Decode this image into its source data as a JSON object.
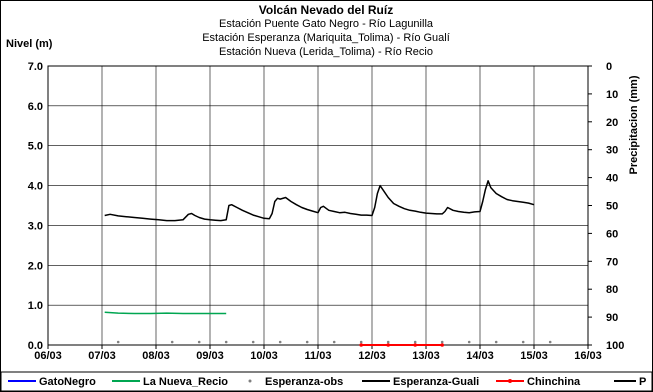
{
  "chart_data": {
    "type": "line",
    "title": "Volcán Nevado del Ruíz",
    "subtitles": [
      "Estación Puente Gato Negro - Río Lagunilla",
      "Estación Esperanza (Mariquita_Tolima) - Río Gualí",
      "Estación Nueva (Lerida_Tolima) - Río Recio"
    ],
    "ylabel": "Nivel (m)",
    "y2label": "Precipitacion (mm)",
    "x_range": [
      0,
      10
    ],
    "ylim": [
      0,
      7
    ],
    "y2lim": [
      100,
      0
    ],
    "x_tick_labels": [
      "06/03",
      "07/03",
      "08/03",
      "09/03",
      "10/03",
      "11/03",
      "12/03",
      "13/03",
      "14/03",
      "15/03",
      "16/03"
    ],
    "y_tick_labels": [
      "0.0",
      "1.0",
      "2.0",
      "3.0",
      "4.0",
      "5.0",
      "6.0",
      "7.0"
    ],
    "y2_tick_labels": [
      "0",
      "10",
      "20",
      "30",
      "40",
      "50",
      "60",
      "70",
      "80",
      "90",
      "100"
    ],
    "grid": true,
    "legend_position": "bottom",
    "colors": {
      "GatoNegro": "#0000ff",
      "La Nueva_Recio": "#00a651",
      "Esperanza-obs": "#7f7f7f",
      "Esperanza-Guali": "#000000",
      "Chinchina": "#ff0000",
      "P": "#000000"
    },
    "series": [
      {
        "name": "GatoNegro",
        "marker": "line",
        "x": [],
        "y": []
      },
      {
        "name": "La Nueva_Recio",
        "marker": "line",
        "x": [
          1.05,
          1.3,
          1.6,
          1.9,
          2.2,
          2.5,
          2.8,
          3.1,
          3.3
        ],
        "y": [
          0.82,
          0.8,
          0.79,
          0.79,
          0.8,
          0.79,
          0.79,
          0.79,
          0.79
        ]
      },
      {
        "name": "Esperanza-obs",
        "marker": "dot",
        "x": [
          1.3,
          2.3,
          2.8,
          3.3,
          3.8,
          4.3,
          4.8,
          5.3,
          5.8,
          6.3,
          6.8,
          7.3,
          7.8,
          8.3,
          8.8,
          9.3
        ],
        "y": [
          0.05,
          0.05,
          0.05,
          0.05,
          0.05,
          0.05,
          0.05,
          0.05,
          0.05,
          0.05,
          0.05,
          0.05,
          0.05,
          0.05,
          0.05,
          0.05
        ]
      },
      {
        "name": "Esperanza-Guali",
        "marker": "line",
        "x": [
          1.05,
          1.15,
          1.3,
          1.45,
          1.6,
          1.75,
          1.9,
          2.05,
          2.2,
          2.35,
          2.5,
          2.6,
          2.66,
          2.72,
          2.8,
          2.9,
          3.0,
          3.1,
          3.2,
          3.3,
          3.35,
          3.4,
          3.5,
          3.6,
          3.7,
          3.8,
          3.9,
          4.0,
          4.1,
          4.15,
          4.2,
          4.25,
          4.3,
          4.4,
          4.5,
          4.6,
          4.7,
          4.8,
          4.9,
          5.0,
          5.05,
          5.1,
          5.2,
          5.3,
          5.4,
          5.5,
          5.6,
          5.7,
          5.8,
          5.9,
          6.0,
          6.05,
          6.1,
          6.15,
          6.2,
          6.3,
          6.4,
          6.5,
          6.6,
          6.7,
          6.8,
          6.9,
          7.0,
          7.1,
          7.2,
          7.3,
          7.35,
          7.4,
          7.5,
          7.6,
          7.7,
          7.8,
          7.9,
          8.0,
          8.05,
          8.1,
          8.15,
          8.2,
          8.3,
          8.4,
          8.5,
          8.6,
          8.7,
          8.8,
          8.9,
          9.0
        ],
        "y": [
          3.25,
          3.28,
          3.24,
          3.22,
          3.2,
          3.18,
          3.16,
          3.14,
          3.12,
          3.12,
          3.14,
          3.28,
          3.3,
          3.25,
          3.2,
          3.16,
          3.14,
          3.13,
          3.12,
          3.14,
          3.5,
          3.52,
          3.45,
          3.38,
          3.32,
          3.26,
          3.22,
          3.18,
          3.17,
          3.3,
          3.6,
          3.68,
          3.66,
          3.7,
          3.6,
          3.52,
          3.45,
          3.4,
          3.36,
          3.32,
          3.45,
          3.48,
          3.38,
          3.35,
          3.32,
          3.33,
          3.3,
          3.28,
          3.26,
          3.26,
          3.25,
          3.45,
          3.8,
          4.0,
          3.9,
          3.7,
          3.55,
          3.48,
          3.42,
          3.38,
          3.36,
          3.33,
          3.31,
          3.3,
          3.29,
          3.29,
          3.35,
          3.45,
          3.38,
          3.35,
          3.33,
          3.32,
          3.34,
          3.35,
          3.6,
          3.9,
          4.12,
          3.95,
          3.8,
          3.72,
          3.65,
          3.62,
          3.6,
          3.58,
          3.56,
          3.52
        ]
      },
      {
        "name": "Chinchina",
        "marker": "line-dot",
        "x": [
          5.8,
          6.3,
          6.8,
          7.3
        ],
        "y": [
          0.0,
          0.0,
          0.0,
          0.0
        ]
      },
      {
        "name": "P",
        "marker": "bar",
        "x": [],
        "y": []
      }
    ]
  }
}
